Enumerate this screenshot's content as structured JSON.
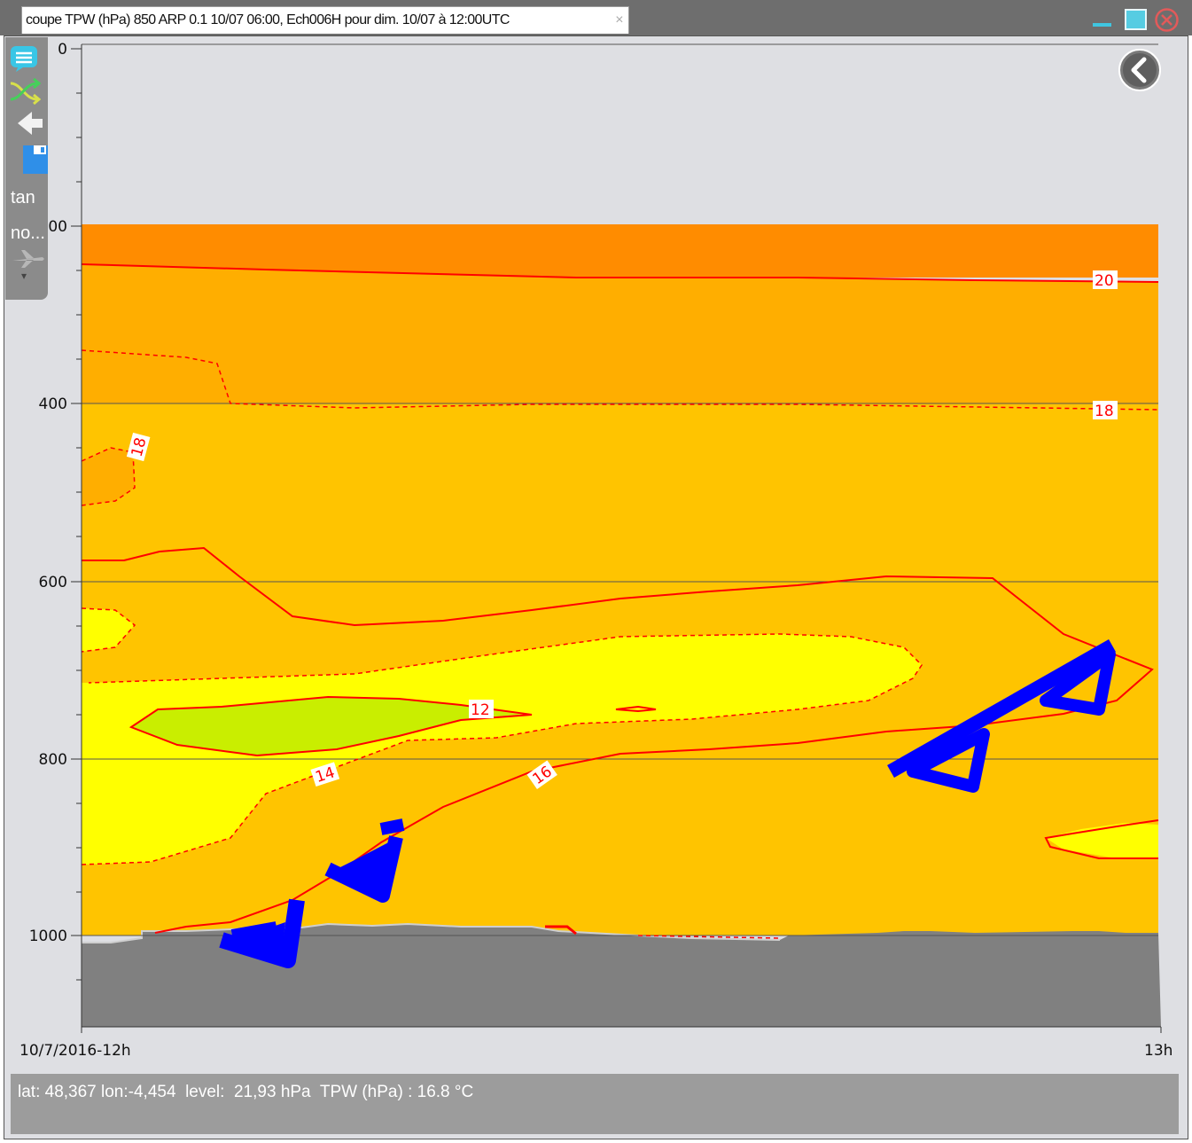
{
  "window": {
    "tab_title": "coupe TPW (hPa) 850 ARP 0.1 10/07 06:00, Ech006H pour dim. 10/07 à 12:00UTC",
    "tab_close": "×",
    "controls": {
      "minimize": "minimize-icon",
      "maximize": "maximize-icon",
      "close": "close-icon"
    }
  },
  "toolbar": {
    "icons": [
      "list-icon",
      "shuffle-icon",
      "back-arrow-icon",
      "save-icon",
      "plane-icon",
      "dropdown-arrow-icon"
    ],
    "labels": [
      "tan",
      "no..."
    ],
    "dropdown_glyph": "▾"
  },
  "plot": {
    "back_button_icon": "chevron-left-circle-icon",
    "x_labels": {
      "start": "10/7/2016-12h",
      "end": "13h"
    },
    "y_ticks": [
      "0",
      "200",
      "400",
      "600",
      "800",
      "1000"
    ],
    "contour_labels": [
      "20",
      "18",
      "18",
      "12",
      "14",
      "16"
    ]
  },
  "chart_data": {
    "type": "heatmap",
    "title": "",
    "xlabel": "",
    "ylabel": "",
    "x_ticks": [
      "10/7/2016-12h",
      "13h"
    ],
    "y_ticks": [
      0,
      200,
      400,
      600,
      800,
      1000
    ],
    "ylim": [
      1100,
      0
    ],
    "y_inverted": true,
    "grid": "horizontal lines at 400, 600, 800, 1000",
    "contour_levels": [
      12,
      14,
      16,
      18,
      20
    ],
    "fill_colors": [
      "#c9ee00",
      "#ffff00",
      "#ffc400",
      "#ffae00",
      "#ff8c00"
    ],
    "contour_color": "#ff0000",
    "terrain_color": "#808080",
    "wind_barb_color": "#0000ff"
  },
  "status": {
    "text": "lat: 48,367 lon:-4,454  level:  21,93 hPa  TPW (hPa) : 16.8 °C"
  }
}
